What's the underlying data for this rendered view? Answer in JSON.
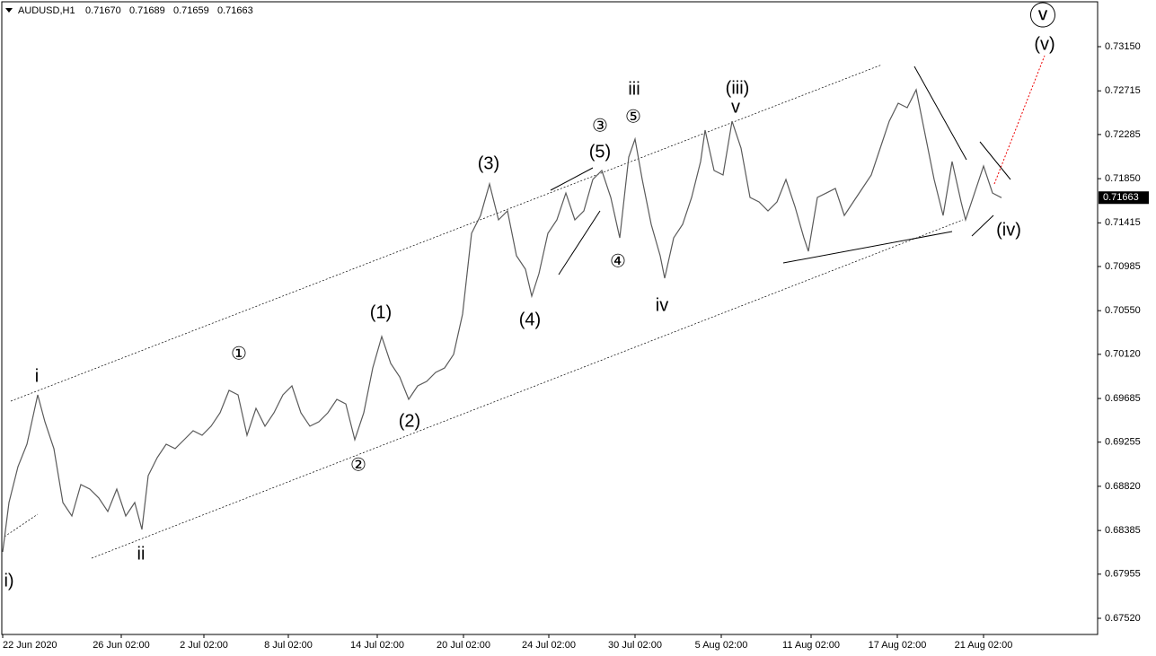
{
  "chart_data": {
    "type": "line",
    "title": "AUDUSD,H1",
    "ohlc": [
      {
        "value": 0.7167,
        "label": "0.71670"
      },
      {
        "value": 0.71689,
        "label": "0.71689"
      },
      {
        "value": 0.71659,
        "label": "0.71659"
      },
      {
        "value": 0.71663,
        "label": "0.71663"
      }
    ],
    "x": [
      0,
      7,
      17,
      27,
      39,
      47,
      57,
      67,
      77,
      87,
      97,
      107,
      117,
      127,
      137,
      147,
      155,
      162,
      172,
      182,
      192,
      202,
      212,
      222,
      232,
      242,
      252,
      262,
      272,
      282,
      292,
      302,
      312,
      322,
      332,
      342,
      352,
      362,
      372,
      382,
      392,
      402,
      412,
      422,
      432,
      442,
      452,
      462,
      472,
      482,
      492,
      502,
      512,
      522,
      532,
      542,
      552,
      562,
      572,
      582,
      589,
      597,
      607,
      617,
      627,
      637,
      647,
      657,
      667,
      677,
      687,
      697,
      704,
      712,
      722,
      732,
      737,
      747,
      757,
      767,
      777,
      782,
      792,
      802,
      812,
      822,
      832,
      842,
      852,
      862,
      872,
      882,
      892,
      897,
      907,
      917,
      927,
      937,
      947,
      957,
      967,
      977,
      987,
      997,
      1007,
      1017,
      1027,
      1037,
      1047,
      1057,
      1067,
      1072,
      1082,
      1092,
      1102,
      1112
    ],
    "series": [
      {
        "color": "#5a5a5a",
        "values": [
          0.68174,
          0.6866,
          0.69014,
          0.69235,
          0.69721,
          0.69456,
          0.69191,
          0.6866,
          0.68528,
          0.68837,
          0.68793,
          0.68705,
          0.68572,
          0.68793,
          0.68528,
          0.6866,
          0.68395,
          0.68925,
          0.69102,
          0.69235,
          0.69191,
          0.69279,
          0.69367,
          0.69323,
          0.69412,
          0.69544,
          0.69765,
          0.69721,
          0.69323,
          0.69588,
          0.69412,
          0.69544,
          0.69721,
          0.69809,
          0.69544,
          0.69412,
          0.69456,
          0.69544,
          0.69677,
          0.69632,
          0.69279,
          0.69544,
          0.69986,
          0.70295,
          0.7003,
          0.69898,
          0.69677,
          0.69809,
          0.69853,
          0.69942,
          0.69986,
          0.70119,
          0.70516,
          0.71312,
          0.71488,
          0.71798,
          0.71444,
          0.71533,
          0.71091,
          0.70958,
          0.70693,
          0.70914,
          0.71312,
          0.71444,
          0.71709,
          0.71444,
          0.71533,
          0.71842,
          0.7193,
          0.71665,
          0.71267,
          0.72063,
          0.7224,
          0.71842,
          0.714,
          0.71091,
          0.7087,
          0.71267,
          0.714,
          0.71665,
          0.72019,
          0.72328,
          0.7193,
          0.71886,
          0.72416,
          0.72151,
          0.71665,
          0.71621,
          0.71533,
          0.71621,
          0.71842,
          0.71577,
          0.71267,
          0.71135,
          0.71665,
          0.71709,
          0.71754,
          0.71488,
          0.71621,
          0.71754,
          0.71886,
          0.72151,
          0.72416,
          0.72593,
          0.72549,
          0.72726,
          0.72284,
          0.71842,
          0.71488,
          0.72019,
          0.71621,
          0.71444,
          0.71709,
          0.71975,
          0.71709,
          0.71663
        ]
      }
    ],
    "last_price": {
      "value": 0.71663,
      "label": "0.71663"
    },
    "xlim": [
      -1,
      1219
    ],
    "xticks": [
      {
        "value": 0,
        "label": "22 Jun 2020"
      },
      {
        "value": 132,
        "label": "26 Jun 02:00"
      },
      {
        "value": 224,
        "label": "2 Jul 02:00"
      },
      {
        "value": 318,
        "label": "8 Jul 02:00"
      },
      {
        "value": 417,
        "label": "14 Jul 02:00"
      },
      {
        "value": 513,
        "label": "20 Jul 02:00"
      },
      {
        "value": 608,
        "label": "24 Jul 02:00"
      },
      {
        "value": 704,
        "label": "30 Jul 02:00"
      },
      {
        "value": 800,
        "label": "5 Aug 02:00"
      },
      {
        "value": 900,
        "label": "11 Aug 02:00"
      },
      {
        "value": 996,
        "label": "17 Aug 02:00"
      },
      {
        "value": 1092,
        "label": "21 Aug 02:00"
      }
    ],
    "ylim": [
      0.67361,
      0.73592
    ],
    "yticks": [
      {
        "value": 0.7315,
        "label": "0.73150"
      },
      {
        "value": 0.72715,
        "label": "0.72715"
      },
      {
        "value": 0.72285,
        "label": "0.72285"
      },
      {
        "value": 0.7185,
        "label": "0.71850"
      },
      {
        "value": 0.71415,
        "label": "0.71415"
      },
      {
        "value": 0.70985,
        "label": "0.70985"
      },
      {
        "value": 0.7055,
        "label": "0.70550"
      },
      {
        "value": 0.7012,
        "label": "0.70120"
      },
      {
        "value": 0.69685,
        "label": "0.69685"
      },
      {
        "value": 0.69255,
        "label": "0.69255"
      },
      {
        "value": 0.6882,
        "label": "0.68820"
      },
      {
        "value": 0.68385,
        "label": "0.68385"
      },
      {
        "value": 0.67955,
        "label": "0.67955"
      },
      {
        "value": 0.6752,
        "label": "0.67520"
      }
    ],
    "grid": false,
    "annotations": [
      "i",
      "ii",
      "(1)",
      "①",
      "(2)",
      "②",
      "(3)",
      "(4)",
      "(5)",
      "③",
      "④",
      "⑤",
      "iii",
      "iv",
      "(iii)",
      "v",
      "(iv)",
      "(v)",
      "ⓥ",
      "i)"
    ]
  }
}
